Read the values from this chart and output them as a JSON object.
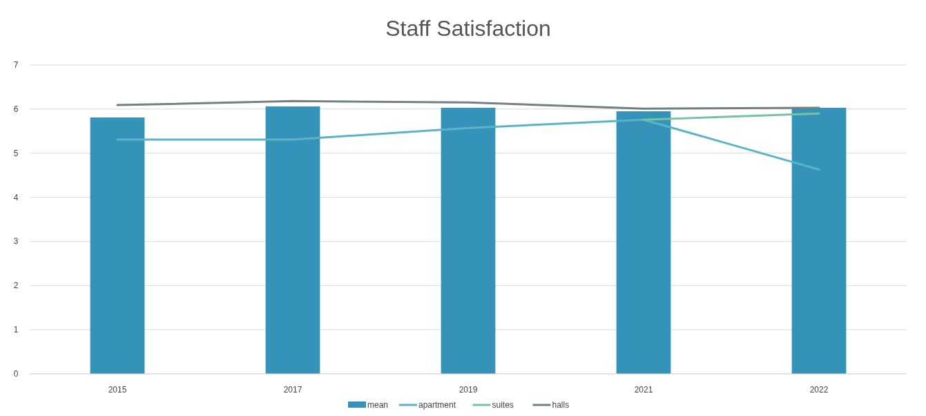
{
  "chart_data": {
    "type": "bar",
    "title": "Staff Satisfaction",
    "categories": [
      "2015",
      "2017",
      "2019",
      "2021",
      "2022"
    ],
    "series": [
      {
        "name": "mean",
        "color": "#3592b9",
        "values": [
          5.81,
          6.06,
          6.03,
          5.95,
          6.03
        ]
      },
      {
        "name": "apartment",
        "type": "line",
        "color": "#5ab4c5",
        "values": [
          5.31,
          5.31,
          5.57,
          5.76,
          4.63
        ]
      },
      {
        "name": "suites",
        "type": "line",
        "color": "#78c2a0",
        "values": [
          null,
          null,
          null,
          5.76,
          5.9
        ]
      },
      {
        "name": "halls",
        "type": "line",
        "color": "#72807f",
        "values": [
          6.09,
          6.18,
          6.15,
          6.01,
          6.03
        ]
      }
    ],
    "ylim": [
      0,
      7
    ],
    "yticks": [
      0,
      1,
      2,
      3,
      4,
      5,
      6,
      7
    ],
    "grid": "y",
    "legend": "bottom"
  }
}
